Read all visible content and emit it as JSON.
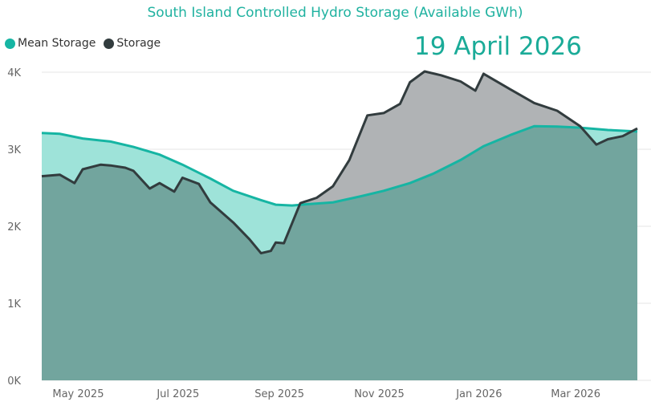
{
  "chart_data": {
    "type": "area",
    "title": "South Island Controlled Hydro Storage (Available GWh)",
    "annotation": "19 April 2026",
    "legend_position": "top-left",
    "grid": true,
    "x_range": [
      "2025-04-20",
      "2026-04-19"
    ],
    "ylim": [
      0,
      4000
    ],
    "y_ticks": [
      0,
      1000,
      2000,
      3000,
      4000
    ],
    "y_tick_labels": [
      "0K",
      "1K",
      "2K",
      "3K",
      "4K"
    ],
    "x_ticks": [
      {
        "date": "2025-05-01",
        "label": "May 2025"
      },
      {
        "date": "2025-07-01",
        "label": "Jul 2025"
      },
      {
        "date": "2025-09-01",
        "label": "Sep 2025"
      },
      {
        "date": "2025-11-01",
        "label": "Nov 2025"
      },
      {
        "date": "2026-01-01",
        "label": "Jan 2026"
      },
      {
        "date": "2026-03-01",
        "label": "Mar 2026"
      }
    ],
    "colors": {
      "mean_line": "#16b5a3",
      "mean_fill": "#9ee3d9",
      "storage_line": "#323c3e",
      "storage_fill": "#b0b3b5",
      "overlap_fill": "#72a59e",
      "title": "#20b2a0",
      "annotation": "#1aab98"
    },
    "series": [
      {
        "name": "Mean Storage",
        "points": [
          [
            "2025-04-20",
            3210
          ],
          [
            "2025-05-01",
            3200
          ],
          [
            "2025-05-15",
            3140
          ],
          [
            "2025-06-01",
            3100
          ],
          [
            "2025-06-15",
            3030
          ],
          [
            "2025-07-01",
            2930
          ],
          [
            "2025-07-15",
            2800
          ],
          [
            "2025-08-01",
            2620
          ],
          [
            "2025-08-15",
            2460
          ],
          [
            "2025-09-01",
            2340
          ],
          [
            "2025-09-10",
            2280
          ],
          [
            "2025-09-20",
            2270
          ],
          [
            "2025-10-01",
            2290
          ],
          [
            "2025-10-15",
            2310
          ],
          [
            "2025-11-01",
            2390
          ],
          [
            "2025-11-15",
            2460
          ],
          [
            "2025-12-01",
            2560
          ],
          [
            "2025-12-15",
            2680
          ],
          [
            "2026-01-01",
            2860
          ],
          [
            "2026-01-15",
            3040
          ],
          [
            "2026-02-01",
            3190
          ],
          [
            "2026-02-15",
            3300
          ],
          [
            "2026-03-01",
            3295
          ],
          [
            "2026-03-15",
            3280
          ],
          [
            "2026-04-01",
            3250
          ],
          [
            "2026-04-19",
            3230
          ]
        ]
      },
      {
        "name": "Storage",
        "points": [
          [
            "2025-04-20",
            2650
          ],
          [
            "2025-05-01",
            2670
          ],
          [
            "2025-05-10",
            2560
          ],
          [
            "2025-05-15",
            2740
          ],
          [
            "2025-05-26",
            2800
          ],
          [
            "2025-06-01",
            2790
          ],
          [
            "2025-06-10",
            2760
          ],
          [
            "2025-06-15",
            2720
          ],
          [
            "2025-06-25",
            2490
          ],
          [
            "2025-07-01",
            2560
          ],
          [
            "2025-07-10",
            2450
          ],
          [
            "2025-07-15",
            2630
          ],
          [
            "2025-07-25",
            2550
          ],
          [
            "2025-08-01",
            2310
          ],
          [
            "2025-08-15",
            2050
          ],
          [
            "2025-08-25",
            1830
          ],
          [
            "2025-09-01",
            1650
          ],
          [
            "2025-09-07",
            1680
          ],
          [
            "2025-09-10",
            1790
          ],
          [
            "2025-09-15",
            1780
          ],
          [
            "2025-09-25",
            2300
          ],
          [
            "2025-10-05",
            2370
          ],
          [
            "2025-10-15",
            2520
          ],
          [
            "2025-10-25",
            2860
          ],
          [
            "2025-11-05",
            3440
          ],
          [
            "2025-11-15",
            3470
          ],
          [
            "2025-11-25",
            3590
          ],
          [
            "2025-12-01",
            3870
          ],
          [
            "2025-12-10",
            4010
          ],
          [
            "2025-12-20",
            3960
          ],
          [
            "2026-01-01",
            3880
          ],
          [
            "2026-01-10",
            3760
          ],
          [
            "2026-01-15",
            3980
          ],
          [
            "2026-02-01",
            3770
          ],
          [
            "2026-02-15",
            3600
          ],
          [
            "2026-03-01",
            3500
          ],
          [
            "2026-03-15",
            3300
          ],
          [
            "2026-03-25",
            3060
          ],
          [
            "2026-04-01",
            3130
          ],
          [
            "2026-04-10",
            3170
          ],
          [
            "2026-04-19",
            3270
          ]
        ]
      }
    ]
  }
}
